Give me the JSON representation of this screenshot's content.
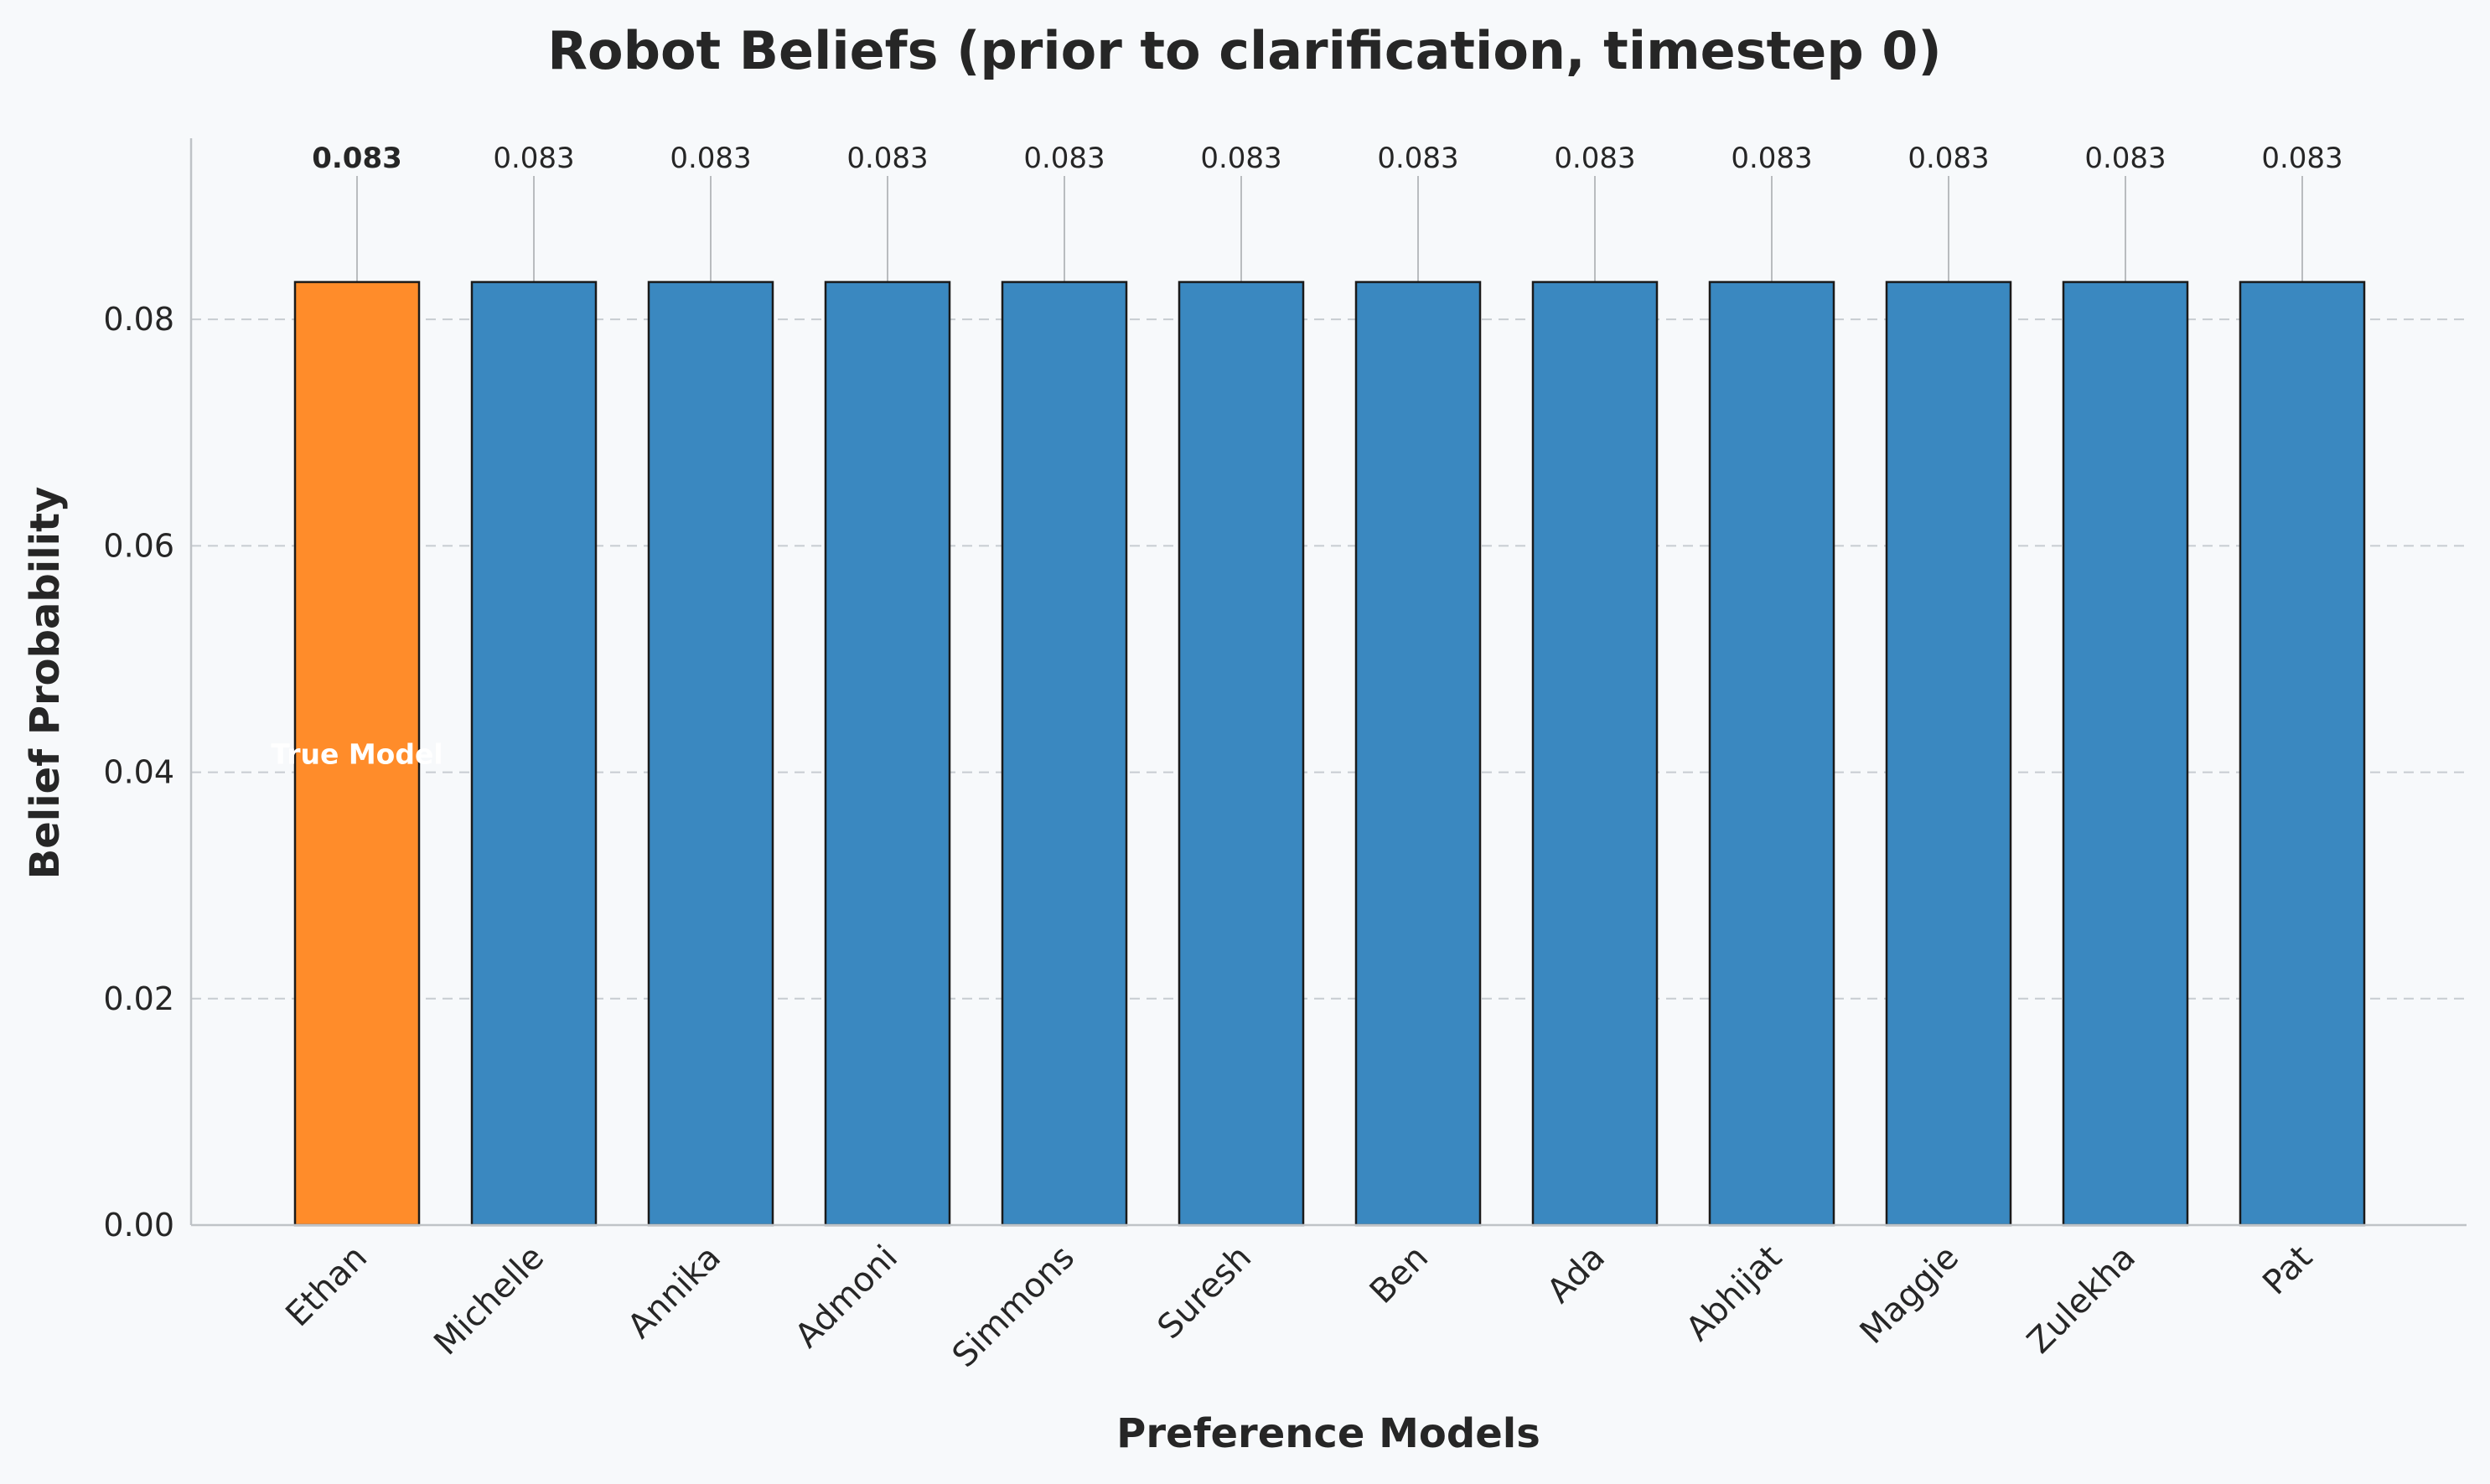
{
  "chart_data": {
    "type": "bar",
    "title": "Robot Beliefs (prior to clarification, timestep 0)",
    "xlabel": "Preference Models",
    "ylabel": "Belief Probability",
    "categories": [
      "Ethan",
      "Michelle",
      "Annika",
      "Admoni",
      "Simmons",
      "Suresh",
      "Ben",
      "Ada",
      "Abhijat",
      "Maggie",
      "Zulekha",
      "Pat"
    ],
    "values": [
      0.0833,
      0.0833,
      0.0833,
      0.0833,
      0.0833,
      0.0833,
      0.0833,
      0.0833,
      0.0833,
      0.0833,
      0.0833,
      0.0833
    ],
    "value_labels": [
      "0.083",
      "0.083",
      "0.083",
      "0.083",
      "0.083",
      "0.083",
      "0.083",
      "0.083",
      "0.083",
      "0.083",
      "0.083",
      "0.083"
    ],
    "ylim": [
      0,
      0.096
    ],
    "yticks": [
      0.0,
      0.02,
      0.04,
      0.06,
      0.08
    ],
    "ytick_labels": [
      "0.00",
      "0.02",
      "0.04",
      "0.06",
      "0.08"
    ],
    "grid": "horizontal dashed",
    "highlight_index": 0,
    "highlight_label": "True Model",
    "colors": {
      "bar": "#3a88c0",
      "highlight": "#ff8c2a",
      "edge": "#1a1a1a"
    }
  }
}
